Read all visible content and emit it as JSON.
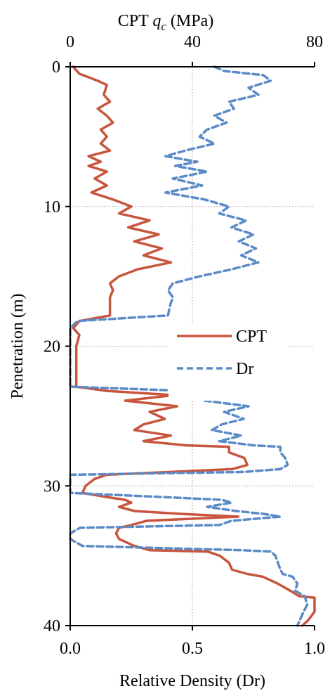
{
  "chart_data": {
    "type": "line",
    "top_axis": {
      "title_prefix": "CPT",
      "title_symbol": "q",
      "title_subscript": "c",
      "title_unit": "(MPa)",
      "ticks": [
        "0",
        "40",
        "80"
      ],
      "range": [
        0,
        80
      ]
    },
    "bottom_axis": {
      "title": "Relative Density (Dr)",
      "ticks": [
        "0.0",
        "0.5",
        "1.0"
      ],
      "range": [
        0,
        1.0
      ]
    },
    "y_axis": {
      "title": "Penetration (m)",
      "ticks": [
        "0",
        "10",
        "20",
        "30",
        "40"
      ],
      "range": [
        0,
        40
      ],
      "inverted": true
    },
    "grid": true,
    "legend": {
      "placement": "center-right",
      "entries": [
        "CPT",
        "Dr"
      ]
    },
    "series": [
      {
        "name": "CPT",
        "axis": "top",
        "unit": "MPa",
        "color": "#C8553D",
        "style": "solid",
        "points": [
          [
            1,
            0.0
          ],
          [
            3,
            0.5
          ],
          [
            9,
            1.0
          ],
          [
            12,
            1.3
          ],
          [
            11,
            2.0
          ],
          [
            13,
            2.5
          ],
          [
            9,
            3.0
          ],
          [
            12,
            3.5
          ],
          [
            14,
            4.0
          ],
          [
            10,
            4.5
          ],
          [
            12,
            5.0
          ],
          [
            10,
            5.5
          ],
          [
            13,
            6.0
          ],
          [
            6,
            6.4
          ],
          [
            10,
            6.8
          ],
          [
            6,
            7.1
          ],
          [
            12,
            7.5
          ],
          [
            8,
            8.0
          ],
          [
            12,
            8.5
          ],
          [
            7,
            9.0
          ],
          [
            14,
            9.5
          ],
          [
            20,
            10.0
          ],
          [
            16,
            10.5
          ],
          [
            26,
            11.0
          ],
          [
            19,
            11.5
          ],
          [
            29,
            12.0
          ],
          [
            21,
            12.5
          ],
          [
            30,
            13.0
          ],
          [
            24,
            13.5
          ],
          [
            33,
            14.0
          ],
          [
            22,
            14.5
          ],
          [
            16,
            15.0
          ],
          [
            13,
            15.5
          ],
          [
            14,
            16.0
          ],
          [
            13,
            16.5
          ],
          [
            13,
            17.0
          ],
          [
            13,
            17.8
          ],
          [
            3,
            18.2
          ],
          [
            1,
            18.7
          ],
          [
            3,
            19.2
          ],
          [
            2,
            20.0
          ],
          [
            2,
            21.0
          ],
          [
            2,
            22.0
          ],
          [
            2,
            22.9
          ],
          [
            12,
            23.2
          ],
          [
            34,
            23.5
          ],
          [
            18,
            23.9
          ],
          [
            35,
            24.3
          ],
          [
            26,
            24.7
          ],
          [
            31,
            25.2
          ],
          [
            24,
            25.6
          ],
          [
            21,
            26.0
          ],
          [
            33,
            26.4
          ],
          [
            24,
            26.8
          ],
          [
            38,
            27.1
          ],
          [
            52,
            27.2
          ],
          [
            52,
            27.6
          ],
          [
            57,
            28.0
          ],
          [
            58,
            28.5
          ],
          [
            53,
            28.8
          ],
          [
            33,
            29.0
          ],
          [
            12,
            29.2
          ],
          [
            8,
            29.5
          ],
          [
            5,
            30.0
          ],
          [
            4,
            30.5
          ],
          [
            12,
            30.8
          ],
          [
            18,
            31.0
          ],
          [
            20,
            31.2
          ],
          [
            16,
            31.5
          ],
          [
            21,
            31.8
          ],
          [
            36,
            32.0
          ],
          [
            55,
            32.2
          ],
          [
            25,
            32.5
          ],
          [
            20,
            32.8
          ],
          [
            16,
            33.0
          ],
          [
            15,
            33.4
          ],
          [
            16,
            33.8
          ],
          [
            21,
            34.3
          ],
          [
            26,
            34.6
          ],
          [
            45,
            34.7
          ],
          [
            49,
            35.0
          ],
          [
            52,
            35.5
          ],
          [
            53,
            36.0
          ],
          [
            58,
            36.3
          ],
          [
            63,
            36.5
          ],
          [
            68,
            37.0
          ],
          [
            72,
            37.5
          ],
          [
            75,
            37.9
          ],
          [
            80,
            38.0
          ],
          [
            80,
            39.0
          ],
          [
            78,
            39.6
          ],
          [
            76,
            40.0
          ]
        ]
      },
      {
        "name": "Dr",
        "axis": "bottom",
        "unit": "",
        "color": "#5B8BC6",
        "style": "dashed",
        "points": [
          [
            0.59,
            0.0
          ],
          [
            0.63,
            0.3
          ],
          [
            0.79,
            0.6
          ],
          [
            0.82,
            1.0
          ],
          [
            0.73,
            1.5
          ],
          [
            0.77,
            2.0
          ],
          [
            0.65,
            2.5
          ],
          [
            0.67,
            3.0
          ],
          [
            0.59,
            3.5
          ],
          [
            0.64,
            4.0
          ],
          [
            0.56,
            4.5
          ],
          [
            0.53,
            5.0
          ],
          [
            0.59,
            5.5
          ],
          [
            0.47,
            6.0
          ],
          [
            0.39,
            6.4
          ],
          [
            0.52,
            6.8
          ],
          [
            0.43,
            7.1
          ],
          [
            0.56,
            7.5
          ],
          [
            0.42,
            8.0
          ],
          [
            0.54,
            8.5
          ],
          [
            0.39,
            9.0
          ],
          [
            0.55,
            9.5
          ],
          [
            0.65,
            10.0
          ],
          [
            0.61,
            10.5
          ],
          [
            0.72,
            11.0
          ],
          [
            0.66,
            11.5
          ],
          [
            0.75,
            12.0
          ],
          [
            0.69,
            12.5
          ],
          [
            0.76,
            13.0
          ],
          [
            0.7,
            13.5
          ],
          [
            0.77,
            14.0
          ],
          [
            0.66,
            14.5
          ],
          [
            0.53,
            15.0
          ],
          [
            0.42,
            15.5
          ],
          [
            0.4,
            16.0
          ],
          [
            0.42,
            16.5
          ],
          [
            0.41,
            17.0
          ],
          [
            0.4,
            17.8
          ],
          [
            0.03,
            18.2
          ],
          [
            0.0,
            18.7
          ],
          [
            0.0,
            20.0
          ],
          [
            0.0,
            21.0
          ],
          [
            0.0,
            22.0
          ],
          [
            0.0,
            22.9
          ],
          [
            0.48,
            23.2
          ],
          [
            0.72,
            23.5
          ],
          [
            0.55,
            23.9
          ],
          [
            0.73,
            24.3
          ],
          [
            0.63,
            24.7
          ],
          [
            0.71,
            25.2
          ],
          [
            0.62,
            25.6
          ],
          [
            0.58,
            26.0
          ],
          [
            0.7,
            26.4
          ],
          [
            0.61,
            26.8
          ],
          [
            0.75,
            27.1
          ],
          [
            0.86,
            27.2
          ],
          [
            0.86,
            27.6
          ],
          [
            0.88,
            28.0
          ],
          [
            0.89,
            28.5
          ],
          [
            0.86,
            28.8
          ],
          [
            0.71,
            29.0
          ],
          [
            0.0,
            29.2
          ],
          [
            0.0,
            30.0
          ],
          [
            0.0,
            30.5
          ],
          [
            0.38,
            30.8
          ],
          [
            0.62,
            31.0
          ],
          [
            0.66,
            31.2
          ],
          [
            0.56,
            31.5
          ],
          [
            0.68,
            31.8
          ],
          [
            0.79,
            32.0
          ],
          [
            0.86,
            32.2
          ],
          [
            0.66,
            32.5
          ],
          [
            0.61,
            32.8
          ],
          [
            0.04,
            33.0
          ],
          [
            0.0,
            33.4
          ],
          [
            0.0,
            33.8
          ],
          [
            0.05,
            34.3
          ],
          [
            0.7,
            34.6
          ],
          [
            0.82,
            34.7
          ],
          [
            0.84,
            35.0
          ],
          [
            0.85,
            35.5
          ],
          [
            0.86,
            36.0
          ],
          [
            0.87,
            36.3
          ],
          [
            0.91,
            36.5
          ],
          [
            0.93,
            37.0
          ],
          [
            0.92,
            37.5
          ],
          [
            0.96,
            37.9
          ],
          [
            0.97,
            38.5
          ],
          [
            0.95,
            39.2
          ],
          [
            0.93,
            40.0
          ]
        ]
      }
    ]
  }
}
